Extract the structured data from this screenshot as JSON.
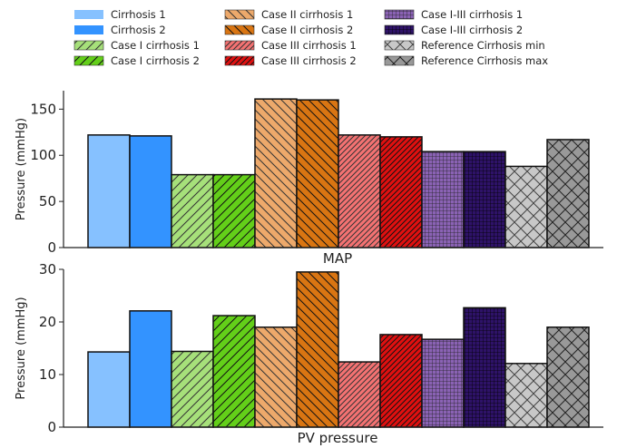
{
  "chart_data": {
    "type": "bar",
    "legend": {
      "placement": "top",
      "columns": 3
    },
    "series": [
      {
        "name": "Cirrhosis 1",
        "color": "#86c1ff",
        "pattern": "none",
        "hatchColor": "#333333"
      },
      {
        "name": "Cirrhosis 2",
        "color": "#3393ff",
        "pattern": "none",
        "hatchColor": "#333333"
      },
      {
        "name": "Case I cirrhosis 1",
        "color": "#a6e07a",
        "pattern": "diag-fwd",
        "hatchColor": "#333333"
      },
      {
        "name": "Case I cirrhosis 2",
        "color": "#63cf19",
        "pattern": "diag-fwd",
        "hatchColor": "#111111"
      },
      {
        "name": "Case II cirrhosis 1",
        "color": "#eda96b",
        "pattern": "diag-back",
        "hatchColor": "#333333"
      },
      {
        "name": "Case II cirrhosis 2",
        "color": "#d97512",
        "pattern": "diag-back",
        "hatchColor": "#111111"
      },
      {
        "name": "Case III cirrhosis 1",
        "color": "#f47272",
        "pattern": "diag-fwd-dense",
        "hatchColor": "#333333"
      },
      {
        "name": "Case III cirrhosis 2",
        "color": "#e01010",
        "pattern": "diag-fwd-dense",
        "hatchColor": "#111111"
      },
      {
        "name": "Case I-III cirrhosis 1",
        "color": "#8a62b4",
        "pattern": "grid",
        "hatchColor": "#222222"
      },
      {
        "name": "Case I-III cirrhosis 2",
        "color": "#2e1268",
        "pattern": "grid",
        "hatchColor": "#000000"
      },
      {
        "name": "Reference Cirrhosis min",
        "color": "#c8c8c8",
        "pattern": "cross",
        "hatchColor": "#444444"
      },
      {
        "name": "Reference Cirrhosis max",
        "color": "#999999",
        "pattern": "cross",
        "hatchColor": "#222222"
      }
    ],
    "panels": [
      {
        "xlabel": "MAP",
        "ylabel": "Pressure (mmHg)",
        "ylim": [
          0,
          170
        ],
        "yticks": [
          0,
          50,
          100,
          150
        ],
        "values": [
          122,
          121,
          79,
          79,
          161,
          160,
          122,
          120,
          104,
          104,
          88,
          117
        ]
      },
      {
        "xlabel": "PV pressure",
        "ylabel": "Pressure (mmHg)",
        "ylim": [
          0,
          30
        ],
        "yticks": [
          0,
          10,
          20,
          30
        ],
        "values": [
          14.3,
          22.1,
          14.4,
          21.2,
          19.0,
          29.5,
          12.4,
          17.6,
          16.7,
          22.7,
          12.1,
          19.0
        ]
      }
    ]
  }
}
